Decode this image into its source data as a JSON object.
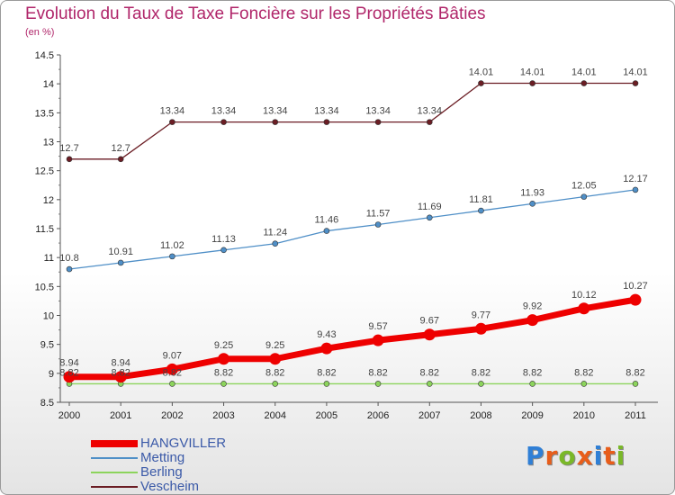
{
  "chart_data": {
    "type": "line",
    "title": "Evolution du Taux de Taxe Foncière sur les Propriétés Bâties",
    "subtitle": "(en %)",
    "xlabel": "",
    "ylabel": "",
    "x": [
      "2000",
      "2001",
      "2002",
      "2003",
      "2004",
      "2005",
      "2006",
      "2007",
      "2008",
      "2009",
      "2010",
      "2011"
    ],
    "ylim": [
      8.5,
      14.5
    ],
    "yticks": [
      "8.5",
      "9",
      "9.5",
      "10",
      "10.5",
      "11",
      "11.5",
      "12",
      "12.5",
      "13",
      "13.5",
      "14",
      "14.5"
    ],
    "grid": false,
    "legend_position": "bottom-left",
    "series": [
      {
        "name": "Vescheim",
        "color": "#6b1d24",
        "values": [
          12.7,
          12.7,
          13.34,
          13.34,
          13.34,
          13.34,
          13.34,
          13.34,
          14.01,
          14.01,
          14.01,
          14.01
        ],
        "labels": [
          "12.7",
          "12.7",
          "13.34",
          "13.34",
          "13.34",
          "13.34",
          "13.34",
          "13.34",
          "14.01",
          "14.01",
          "14.01",
          "14.01"
        ]
      },
      {
        "name": "Metting",
        "color": "#4f8fc7",
        "values": [
          10.8,
          10.91,
          11.02,
          11.13,
          11.24,
          11.46,
          11.57,
          11.69,
          11.81,
          11.93,
          12.05,
          12.17
        ],
        "labels": [
          "10.8",
          "10.91",
          "11.02",
          "11.13",
          "11.24",
          "11.46",
          "11.57",
          "11.69",
          "11.81",
          "11.93",
          "12.05",
          "12.17"
        ]
      },
      {
        "name": "Berling",
        "color": "#8cd45c",
        "values": [
          8.82,
          8.82,
          8.82,
          8.82,
          8.82,
          8.82,
          8.82,
          8.82,
          8.82,
          8.82,
          8.82,
          8.82
        ],
        "labels": [
          "8.82",
          "8.82",
          "8.82",
          "8.82",
          "8.82",
          "8.82",
          "8.82",
          "8.82",
          "8.82",
          "8.82",
          "8.82",
          "8.82"
        ]
      },
      {
        "name": "HANGVILLER",
        "color": "#ee0000",
        "values": [
          8.94,
          8.94,
          9.07,
          9.25,
          9.25,
          9.43,
          9.57,
          9.67,
          9.77,
          9.92,
          10.12,
          10.27
        ],
        "labels": [
          "8.94",
          "8.94",
          "9.07",
          "9.25",
          "9.25",
          "9.43",
          "9.57",
          "9.67",
          "9.77",
          "9.92",
          "10.12",
          "10.27"
        ]
      }
    ],
    "legend": [
      "HANGVILLER",
      "Metting",
      "Berling",
      "Vescheim"
    ]
  },
  "logo": {
    "text": "Proxiti",
    "colors": [
      "#2f7fd6",
      "#e85d1a",
      "#7ab828",
      "#e85d1a",
      "#2f7fd6",
      "#e85d1a",
      "#7ab828"
    ]
  }
}
